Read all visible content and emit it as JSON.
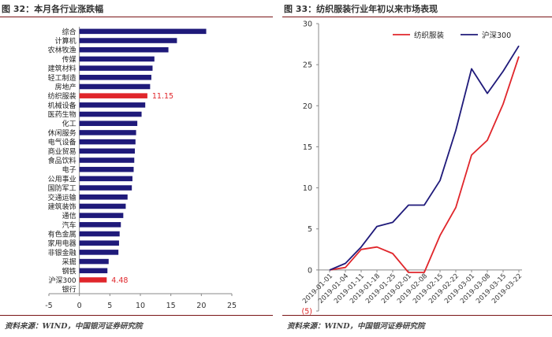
{
  "left_panel": {
    "title": "图 32：本月各行业涨跌幅",
    "source": "资料来源：WIND，中国银河证券研究院"
  },
  "right_panel": {
    "title": "图 33：纺织服装行业年初以来市场表现",
    "source": "资料来源：WIND，中国银河证券研究院"
  },
  "chart_data": [
    {
      "type": "bar",
      "orientation": "horizontal",
      "title": "图 32：本月各行业涨跌幅",
      "categories": [
        "综合",
        "计算机",
        "农林牧渔",
        "传媒",
        "建筑材料",
        "轻工制造",
        "房地产",
        "纺织服装",
        "机械设备",
        "医药生物",
        "化工",
        "休闲服务",
        "电气设备",
        "商业贸易",
        "食品饮料",
        "电子",
        "公用事业",
        "国防军工",
        "交通运输",
        "建筑装饰",
        "通信",
        "汽车",
        "有色金属",
        "家用电器",
        "非银金融",
        "采掘",
        "钢铁",
        "沪深300",
        "银行"
      ],
      "values": [
        20.8,
        16.0,
        14.6,
        12.3,
        12.0,
        11.8,
        11.6,
        11.15,
        10.8,
        10.2,
        9.5,
        9.3,
        9.2,
        9.1,
        9.0,
        8.9,
        8.7,
        8.6,
        7.9,
        7.6,
        7.2,
        6.8,
        6.6,
        6.5,
        6.4,
        4.8,
        4.6,
        4.48,
        0
      ],
      "highlight": [
        "纺织服装",
        "沪深300"
      ],
      "data_labels": [
        {
          "category": "纺织服装",
          "text": "11.15"
        },
        {
          "category": "沪深300",
          "text": "4.48"
        }
      ],
      "xlim": [
        -5,
        25
      ],
      "xticks": [
        "-5",
        "0",
        "5",
        "10",
        "15",
        "20",
        "25"
      ],
      "bar_color": "#1f1a7a",
      "highlight_color": "#e0262b"
    },
    {
      "type": "line",
      "title": "图 33：纺织服装行业年初以来市场表现",
      "x": [
        "2019-01-01",
        "2019-01-04",
        "2019-01-11",
        "2019-01-18",
        "2019-01-25",
        "2019-02-01",
        "2019-02-08",
        "2019-02-15",
        "2019-02-22",
        "2019-03-01",
        "2019-03-08",
        "2019-03-15",
        "2019-03-22"
      ],
      "series": [
        {
          "name": "纺织服装",
          "color": "#e0262b",
          "values": [
            0,
            0.3,
            2.5,
            2.8,
            2.0,
            -0.3,
            -0.3,
            4.2,
            7.6,
            14.0,
            15.8,
            20.2,
            26.0
          ]
        },
        {
          "name": "沪深300",
          "color": "#1f1a7a",
          "values": [
            0,
            0.8,
            2.8,
            5.3,
            5.8,
            7.9,
            7.9,
            10.9,
            17.0,
            24.5,
            21.5,
            24.2,
            27.3
          ]
        }
      ],
      "ylim": [
        -5,
        30
      ],
      "yticks": [
        "(5)",
        "0",
        "5",
        "10",
        "15",
        "20",
        "25",
        "30"
      ],
      "legend_position": "top-center",
      "grid": false
    }
  ]
}
